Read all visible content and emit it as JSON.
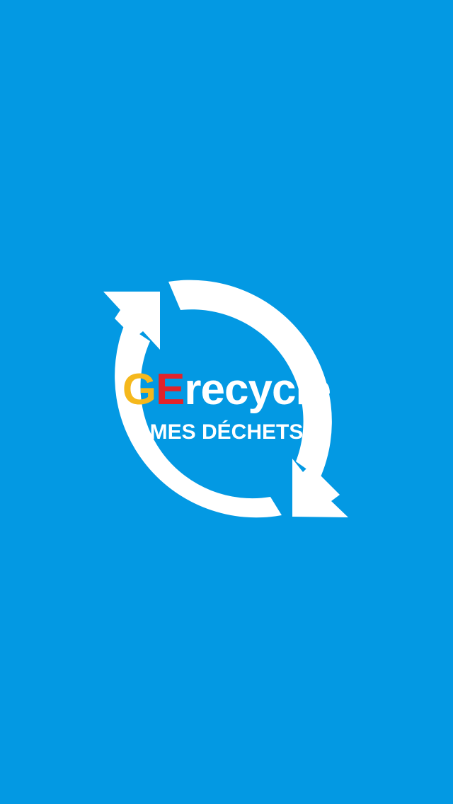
{
  "colors": {
    "background": "#0399e3",
    "arrows": "#ffffff",
    "letter_g": "#f5b81c",
    "letter_e": "#e2232a",
    "wordmark_rest": "#ffffff"
  },
  "logo": {
    "icon": "recycle-arrows-icon",
    "letter_g": "G",
    "letter_e": "E",
    "word_rest": "recycle",
    "tagline": "-- MES DÉCHETS --"
  }
}
